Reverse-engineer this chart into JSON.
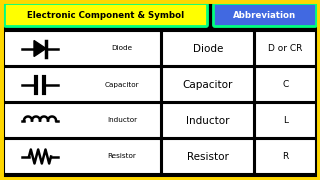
{
  "title": "Electronic Component & Symbol",
  "title2": "Abbreviation",
  "outer_bg": "#000000",
  "border_color": "#FFD700",
  "title_bg": "#FFFF00",
  "title2_bg": "#4169E1",
  "cell_bg": "#FFFFFF",
  "header_border": "#00FF7F",
  "rows": [
    {
      "symbol_text": "Diode",
      "name": "Diode",
      "abbr": "D or CR"
    },
    {
      "symbol_text": "Capacitor",
      "name": "Capacitor",
      "abbr": "C"
    },
    {
      "symbol_text": "Inductor",
      "name": "Inductor",
      "abbr": "L"
    },
    {
      "symbol_text": "Resistor",
      "name": "Resistor",
      "abbr": "R"
    }
  ],
  "symbols": [
    "diode",
    "capacitor",
    "inductor",
    "resistor"
  ]
}
